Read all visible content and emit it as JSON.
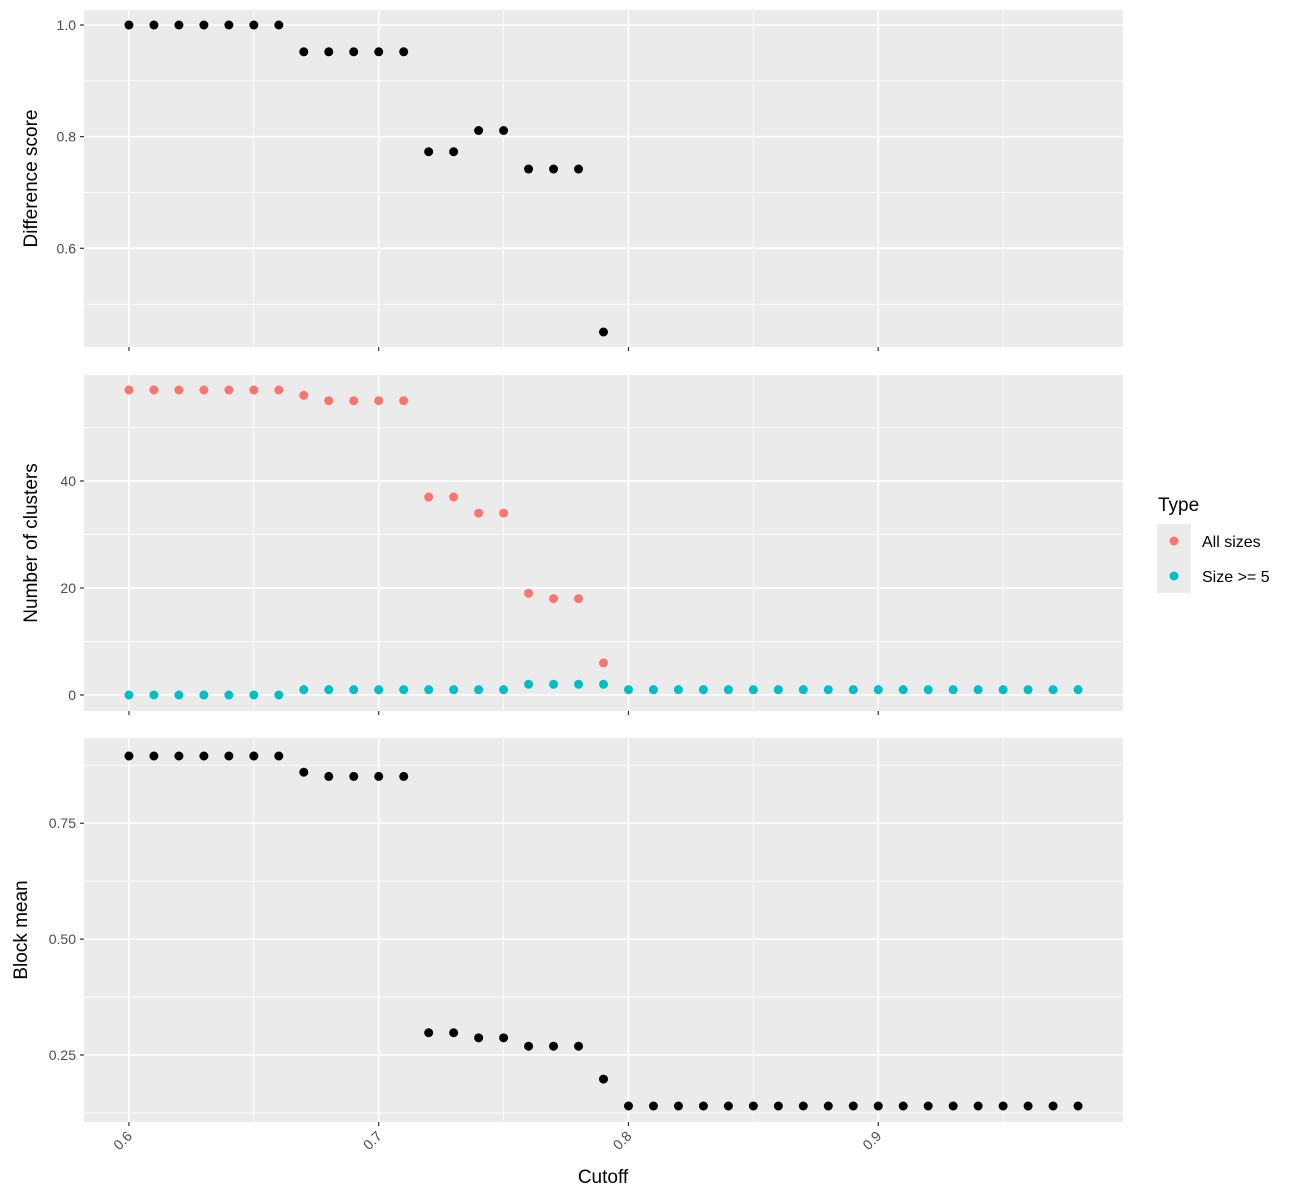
{
  "chart_data": {
    "type": "scatter",
    "xlabel": "Cutoff",
    "xlim": [
      0.582,
      0.998
    ],
    "x_ticks": [
      "0.6",
      "0.7",
      "0.8",
      "0.9"
    ],
    "grid": true,
    "legend": {
      "title": "Type",
      "position": "right",
      "entries": [
        {
          "label": "All sizes",
          "color": "#F8766D"
        },
        {
          "label": "Size >= 5",
          "color": "#00BFC4"
        }
      ]
    },
    "panels": [
      {
        "ylabel": "Difference score",
        "ylim": [
          0.45,
          1.0
        ],
        "y_ticks": [
          "0.6",
          "0.8",
          "1.0"
        ],
        "series": [
          {
            "color": "#000000",
            "x": [
              0.6,
              0.61,
              0.62,
              0.63,
              0.64,
              0.65,
              0.66,
              0.67,
              0.68,
              0.69,
              0.7,
              0.71,
              0.72,
              0.73,
              0.74,
              0.75,
              0.76,
              0.77,
              0.78,
              0.79
            ],
            "y": [
              1.0,
              1.0,
              1.0,
              1.0,
              1.0,
              1.0,
              1.0,
              0.952,
              0.952,
              0.952,
              0.952,
              0.952,
              0.773,
              0.773,
              0.811,
              0.811,
              0.742,
              0.742,
              0.742,
              0.45
            ]
          }
        ]
      },
      {
        "ylabel": "Number of clusters",
        "ylim": [
          0,
          57
        ],
        "y_ticks": [
          "0",
          "20",
          "40"
        ],
        "series": [
          {
            "name": "All sizes",
            "color": "#F8766D",
            "x": [
              0.6,
              0.61,
              0.62,
              0.63,
              0.64,
              0.65,
              0.66,
              0.67,
              0.68,
              0.69,
              0.7,
              0.71,
              0.72,
              0.73,
              0.74,
              0.75,
              0.76,
              0.77,
              0.78,
              0.79
            ],
            "y": [
              57,
              57,
              57,
              57,
              57,
              57,
              57,
              56,
              55,
              55,
              55,
              55,
              37,
              37,
              34,
              34,
              19,
              18,
              18,
              6
            ]
          },
          {
            "name": "Size >= 5",
            "color": "#00BFC4",
            "x": [
              0.6,
              0.61,
              0.62,
              0.63,
              0.64,
              0.65,
              0.66,
              0.67,
              0.68,
              0.69,
              0.7,
              0.71,
              0.72,
              0.73,
              0.74,
              0.75,
              0.76,
              0.77,
              0.78,
              0.79,
              0.8,
              0.81,
              0.82,
              0.83,
              0.84,
              0.85,
              0.86,
              0.87,
              0.88,
              0.89,
              0.9,
              0.91,
              0.92,
              0.93,
              0.94,
              0.95,
              0.96,
              0.97,
              0.98
            ],
            "y": [
              0,
              0,
              0,
              0,
              0,
              0,
              0,
              1,
              1,
              1,
              1,
              1,
              1,
              1,
              1,
              1,
              2,
              2,
              2,
              2,
              1,
              1,
              1,
              1,
              1,
              1,
              1,
              1,
              1,
              1,
              1,
              1,
              1,
              1,
              1,
              1,
              1,
              1,
              1
            ]
          }
        ]
      },
      {
        "ylabel": "Block mean",
        "ylim": [
          0.14,
          0.895
        ],
        "y_ticks": [
          "0.25",
          "0.50",
          "0.75"
        ],
        "series": [
          {
            "color": "#000000",
            "x": [
              0.6,
              0.61,
              0.62,
              0.63,
              0.64,
              0.65,
              0.66,
              0.67,
              0.68,
              0.69,
              0.7,
              0.71,
              0.72,
              0.73,
              0.74,
              0.75,
              0.76,
              0.77,
              0.78,
              0.79,
              0.8,
              0.81,
              0.82,
              0.83,
              0.84,
              0.85,
              0.86,
              0.87,
              0.88,
              0.89,
              0.9,
              0.91,
              0.92,
              0.93,
              0.94,
              0.95,
              0.96,
              0.97,
              0.98
            ],
            "y": [
              0.895,
              0.895,
              0.895,
              0.895,
              0.895,
              0.895,
              0.895,
              0.86,
              0.851,
              0.851,
              0.851,
              0.851,
              0.298,
              0.298,
              0.287,
              0.287,
              0.269,
              0.269,
              0.269,
              0.198,
              0.14,
              0.14,
              0.14,
              0.14,
              0.14,
              0.14,
              0.14,
              0.14,
              0.14,
              0.14,
              0.14,
              0.14,
              0.14,
              0.14,
              0.14,
              0.14,
              0.14,
              0.14,
              0.14
            ]
          }
        ]
      }
    ]
  }
}
